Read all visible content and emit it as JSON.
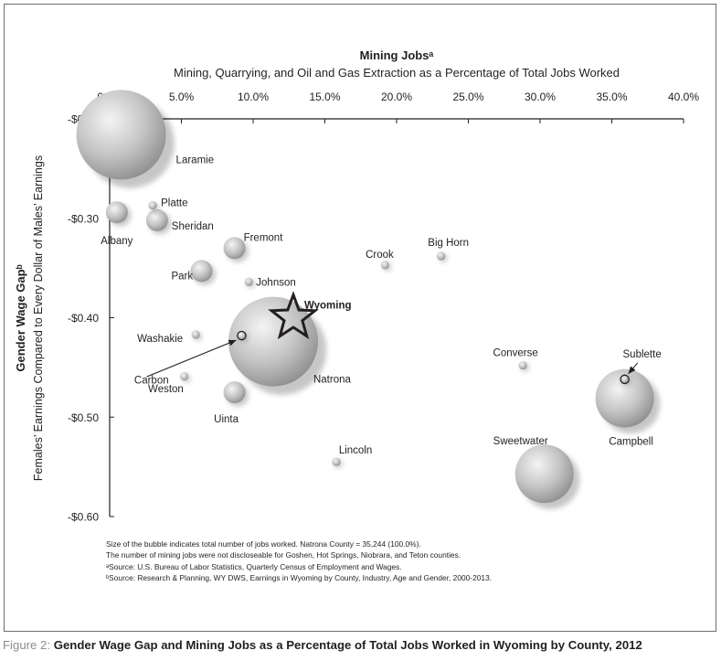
{
  "chart_data": {
    "type": "scatter",
    "subtype": "bubble",
    "title": "Mining Jobsᵃ",
    "subtitle": "Mining, Quarrying, and Oil and Gas Extraction as a Percentage of Total Jobs Worked",
    "xlabel": "Mining Jobsᵃ",
    "ylabel": "Gender Wage Gapᵇ",
    "ylabel_sub": "Females’ Earnings Compared to Every Dollar of Males’ Earnings",
    "x_axis_position": "top",
    "xlim": [
      0,
      40
    ],
    "ylim": [
      -0.6,
      -0.2
    ],
    "x_ticks": [
      "0.0%",
      "5.0%",
      "10.0%",
      "15.0%",
      "20.0%",
      "25.0%",
      "30.0%",
      "35.0%",
      "40.0%"
    ],
    "y_ticks": [
      "-$0.20",
      "-$0.30",
      "-$0.40",
      "-$0.50",
      "-$0.60"
    ],
    "grid": false,
    "series": [
      {
        "points": [
          {
            "label": "Laramie",
            "x": 0.8,
            "y": -0.216,
            "bubble": "very large",
            "label_pos": "right"
          },
          {
            "label": "Platte",
            "x": 3.0,
            "y": -0.287,
            "bubble": "tiny",
            "label_pos": "right"
          },
          {
            "label": "Albany",
            "x": 0.5,
            "y": -0.294,
            "bubble": "small",
            "label_pos": "below"
          },
          {
            "label": "Sheridan",
            "x": 3.3,
            "y": -0.302,
            "bubble": "small",
            "label_pos": "right"
          },
          {
            "label": "Fremont",
            "x": 8.7,
            "y": -0.33,
            "bubble": "small",
            "label_pos": "above-right"
          },
          {
            "label": "Park",
            "x": 6.4,
            "y": -0.353,
            "bubble": "small",
            "label_pos": "left"
          },
          {
            "label": "Johnson",
            "x": 9.7,
            "y": -0.364,
            "bubble": "tiny",
            "label_pos": "right"
          },
          {
            "label": "Crook",
            "x": 19.2,
            "y": -0.347,
            "bubble": "tiny",
            "label_pos": "above"
          },
          {
            "label": "Big Horn",
            "x": 23.1,
            "y": -0.338,
            "bubble": "tiny",
            "label_pos": "above"
          },
          {
            "label": "Washakie",
            "x": 6.0,
            "y": -0.417,
            "bubble": "tiny",
            "label_pos": "left"
          },
          {
            "label": "Weston",
            "x": 9.2,
            "y": -0.418,
            "bubble": "tiny",
            "label_pos": "callout"
          },
          {
            "label": "Natrona",
            "x": 11.4,
            "y": -0.424,
            "bubble": "very large",
            "label_pos": "below-right"
          },
          {
            "label": "Carbon",
            "x": 5.2,
            "y": -0.459,
            "bubble": "tiny",
            "label_pos": "left"
          },
          {
            "label": "Uinta",
            "x": 8.7,
            "y": -0.475,
            "bubble": "small",
            "label_pos": "below"
          },
          {
            "label": "Converse",
            "x": 28.8,
            "y": -0.448,
            "bubble": "tiny",
            "label_pos": "above"
          },
          {
            "label": "Sublette",
            "x": 35.9,
            "y": -0.462,
            "bubble": "tiny",
            "label_pos": "callout"
          },
          {
            "label": "Campbell",
            "x": 35.9,
            "y": -0.481,
            "bubble": "large",
            "label_pos": "below"
          },
          {
            "label": "Lincoln",
            "x": 15.8,
            "y": -0.545,
            "bubble": "tiny",
            "label_pos": "above"
          },
          {
            "label": "Sweetwater",
            "x": 30.3,
            "y": -0.557,
            "bubble": "large",
            "label_pos": "above-left"
          }
        ]
      }
    ],
    "highlight": {
      "label": "Wyoming",
      "x": 12.8,
      "y": -0.4,
      "marker": "star-outline"
    },
    "notes": [
      "Size of the bubble indicates total number of jobs worked. Natrona County = 35,244 (100.0%).",
      "The number of mining jobs were not discloseable for Goshen, Hot Springs, Niobrara, and Teton counties.",
      "ᵃSource: U.S. Bureau of Labor Statistics, Quarterly Census of Employment and Wages.",
      "ᵇSource: Research & Planning, WY DWS, Earnings in Wyoming by County, Industry, Age and Gender, 2000-2013."
    ],
    "caption_lead": "Figure 2: ",
    "caption": "Gender Wage Gap and Mining Jobs as a Percentage of Total Jobs Worked in Wyoming by County, 2012"
  }
}
